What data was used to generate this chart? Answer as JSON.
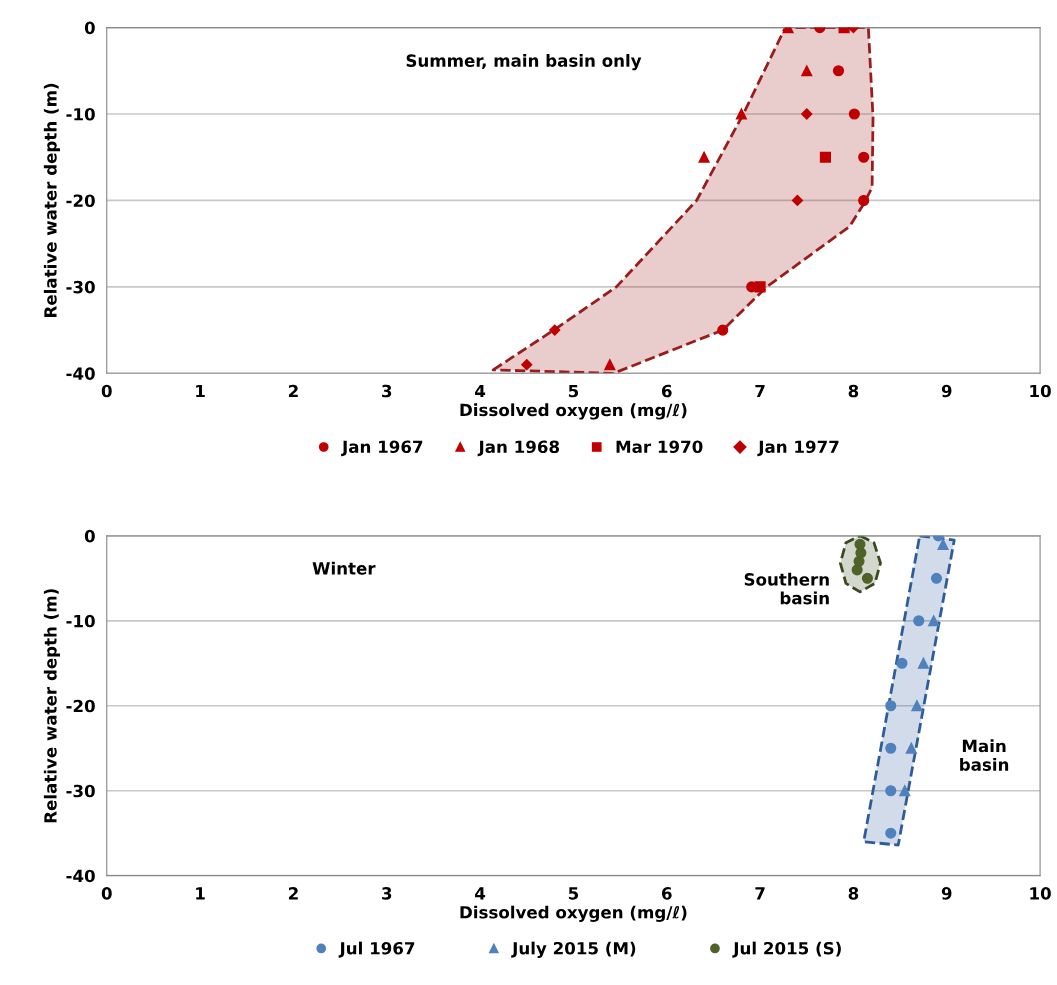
{
  "chart_data": [
    {
      "type": "scatter",
      "xlabel": "Dissolved oxygen (mg/ℓ)",
      "ylabel": "Relative water depth (m)",
      "xlim": [
        0,
        10
      ],
      "ylim": [
        -40,
        0
      ],
      "xticks": [
        0,
        1,
        2,
        3,
        4,
        5,
        6,
        7,
        8,
        9,
        10
      ],
      "yticks": [
        0,
        -10,
        -20,
        -30,
        -40
      ],
      "grid": "y",
      "legend": "bottom",
      "annotations": [
        "Summer, main basin only"
      ],
      "series": [
        {
          "type": "area",
          "color": "#9b1c1c",
          "line_style": "dashed",
          "x": [
            4.14,
            4.79,
            5.46,
            6.32,
            6.82,
            7.27,
            8.16,
            8.21,
            8.2,
            8.11,
            7.96,
            7.07,
            6.6,
            5.43
          ],
          "values": [
            -39.6,
            -35,
            -30,
            -20,
            -10,
            0,
            0,
            -10.4,
            -18.5,
            -20.4,
            -23,
            -30,
            -35,
            -40
          ]
        },
        {
          "name": "Jan 1967",
          "color": "#c00000",
          "marker": "circle",
          "x": [
            7.64,
            7.84,
            8.01,
            8.11,
            8.11,
            6.91,
            6.6
          ],
          "values": [
            0,
            -5,
            -10,
            -15,
            -20,
            -30,
            -35
          ]
        },
        {
          "name": "Jan 1968",
          "color": "#c00000",
          "marker": "triangle",
          "x": [
            7.3,
            7.5,
            6.8,
            6.4,
            5.39
          ],
          "values": [
            0,
            -5,
            -10,
            -15,
            -39
          ]
        },
        {
          "name": "Mar 1970",
          "color": "#c00000",
          "marker": "square",
          "x": [
            7.9,
            7.7,
            7.0
          ],
          "values": [
            0,
            -15,
            -30
          ]
        },
        {
          "name": "Jan 1977",
          "color": "#c00000",
          "marker": "diamond",
          "x": [
            8.0,
            7.5,
            7.4,
            4.8,
            4.5
          ],
          "values": [
            0,
            -10,
            -20,
            -35,
            -39
          ]
        }
      ]
    },
    {
      "type": "scatter",
      "xlabel": "Dissolved oxygen (mg/ℓ)",
      "ylabel": "Relative water depth (m)",
      "xlim": [
        0,
        10
      ],
      "ylim": [
        -40,
        0
      ],
      "xticks": [
        0,
        1,
        2,
        3,
        4,
        5,
        6,
        7,
        8,
        9,
        10
      ],
      "yticks": [
        0,
        -10,
        -20,
        -30,
        -40
      ],
      "grid": "y",
      "legend": "bottom",
      "annotations": [
        "Winter",
        "Southern\nbasin",
        "Main\nbasin"
      ],
      "series": [
        {
          "type": "area",
          "color": "#2e5c99",
          "line_style": "dashed",
          "x": [
            8.71,
            9.08,
            8.48,
            8.11
          ],
          "values": [
            0,
            -0.5,
            -36.4,
            -36
          ]
        },
        {
          "type": "area",
          "color": "#3a4a1c",
          "line_style": "dashed",
          "x": [
            8.07,
            8.22,
            8.29,
            8.23,
            8.07,
            7.92,
            7.86,
            7.92
          ],
          "values": [
            0,
            -0.8,
            -3.2,
            -5.6,
            -6.6,
            -5.6,
            -3.2,
            -0.8
          ]
        },
        {
          "name": "Jul 1967",
          "color": "#4f81bd",
          "marker": "circle",
          "x": [
            8.91,
            8.89,
            8.7,
            8.52,
            8.4,
            8.4,
            8.4,
            8.4
          ],
          "values": [
            0,
            -5,
            -10,
            -15,
            -20,
            -25,
            -30,
            -35
          ]
        },
        {
          "name": "July 2015 (M)",
          "color": "#4f81bd",
          "marker": "triangle",
          "x": [
            8.96,
            8.86,
            8.75,
            8.68,
            8.62,
            8.55
          ],
          "values": [
            -1,
            -10,
            -15,
            -20,
            -25,
            -30
          ]
        },
        {
          "name": "Jul 2015 (S)",
          "color": "#4f6228",
          "marker": "circle",
          "x": [
            8.07,
            8.08,
            8.06,
            8.04,
            8.15
          ],
          "values": [
            -1,
            -2,
            -3,
            -4,
            -5
          ]
        }
      ]
    }
  ]
}
